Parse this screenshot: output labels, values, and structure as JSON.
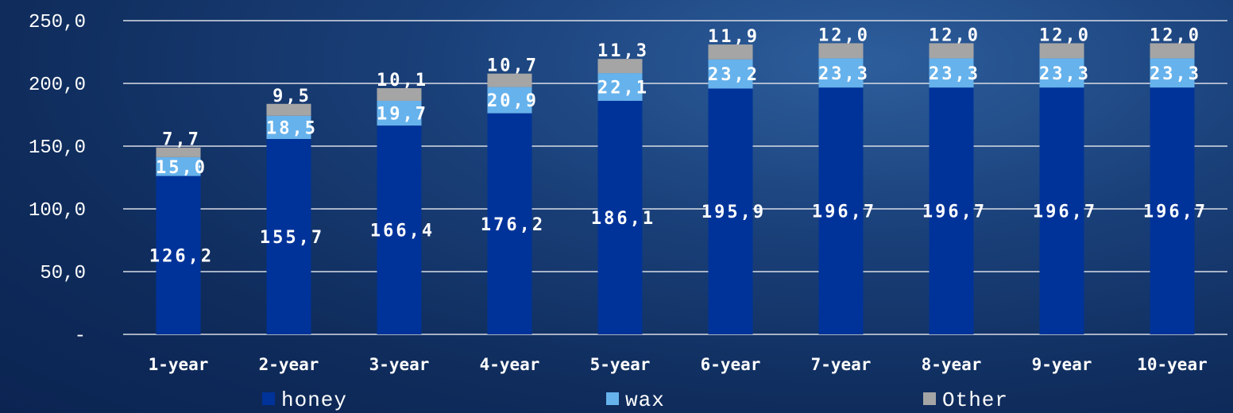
{
  "chart_data": {
    "type": "bar",
    "stacked": true,
    "categories": [
      "1-year",
      "2-year",
      "3-year",
      "4-year",
      "5-year",
      "6-year",
      "7-year",
      "8-year",
      "9-year",
      "10-year"
    ],
    "series": [
      {
        "name": "honey",
        "color": "#003399",
        "values": [
          126.2,
          155.7,
          166.4,
          176.2,
          186.1,
          195.9,
          196.7,
          196.7,
          196.7,
          196.7
        ],
        "labels": [
          "126,2",
          "155,7",
          "166,4",
          "176,2",
          "186,1",
          "195,9",
          "196,7",
          "196,7",
          "196,7",
          "196,7"
        ]
      },
      {
        "name": "wax",
        "color": "#66b2ec",
        "values": [
          15.0,
          18.5,
          19.7,
          20.9,
          22.1,
          23.2,
          23.3,
          23.3,
          23.3,
          23.3
        ],
        "labels": [
          "15,0",
          "18,5",
          "19,7",
          "20,9",
          "22,1",
          "23,2",
          "23,3",
          "23,3",
          "23,3",
          "23,3"
        ]
      },
      {
        "name": "Other",
        "color": "#a5a5a5",
        "values": [
          7.7,
          9.5,
          10.1,
          10.7,
          11.3,
          11.9,
          12.0,
          12.0,
          12.0,
          12.0
        ],
        "labels": [
          "7,7",
          "9,5",
          "10,1",
          "10,7",
          "11,3",
          "11,9",
          "12,0",
          "12,0",
          "12,0",
          "12,0"
        ]
      }
    ],
    "y_ticks": [
      {
        "value": 0,
        "label": "-"
      },
      {
        "value": 50,
        "label": "50,0"
      },
      {
        "value": 100,
        "label": "100,0"
      },
      {
        "value": 150,
        "label": "150,0"
      },
      {
        "value": 200,
        "label": "200,0"
      },
      {
        "value": 250,
        "label": "250,0"
      }
    ],
    "ylim": [
      0,
      250
    ],
    "grid": true,
    "legend_position": "bottom",
    "title": "",
    "xlabel": "",
    "ylabel": ""
  }
}
